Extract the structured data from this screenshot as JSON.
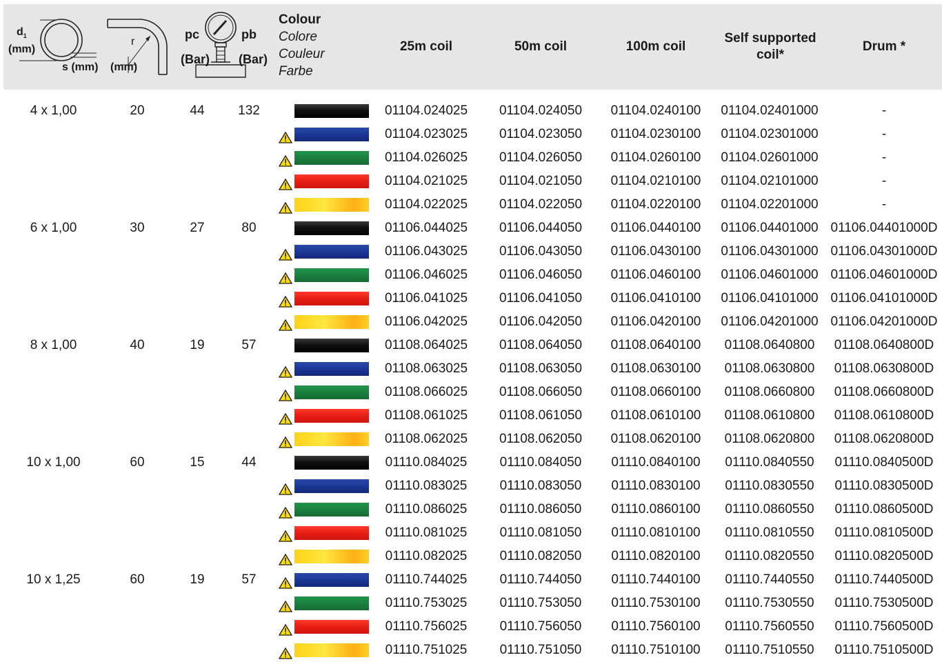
{
  "header": {
    "d1_label": "d",
    "d1_sub": "1",
    "d1_unit": "(mm)",
    "s_label": "s (mm)",
    "r_label": "r",
    "r_unit": "(mm)",
    "pc_label": "pc",
    "pc_unit": "(Bar)",
    "pb_label": "pb",
    "pb_unit": "(Bar)",
    "colour_en": "Colour",
    "colour_it": "Colore",
    "colour_fr": "Couleur",
    "colour_de": "Farbe",
    "col_25": "25m coil",
    "col_50": "50m coil",
    "col_100": "100m coil",
    "col_self": "Self supported coil*",
    "col_drum": "Drum *"
  },
  "colors": {
    "header_bg": "#e6e6e6",
    "black": "#111111",
    "blue": "#1b3794",
    "green": "#1b8040",
    "red": "#e81c14",
    "yellow": "#ffe640",
    "warning": "#ffdd00"
  },
  "icons": {
    "tube_section": "tube-cross-section-icon",
    "bend_radius": "bend-radius-icon",
    "pressure_gauge": "pressure-gauge-icon",
    "warning": "warning-triangle-icon"
  },
  "rows": [
    {
      "size": "4 x 1,00",
      "r": "20",
      "pc": "44",
      "pb": "132",
      "colour": "black",
      "warn": false,
      "c25": "01104.024025",
      "c50": "01104.024050",
      "c100": "01104.0240100",
      "self": "01104.02401000",
      "drum": "-"
    },
    {
      "size": "",
      "r": "",
      "pc": "",
      "pb": "",
      "colour": "blue",
      "warn": true,
      "c25": "01104.023025",
      "c50": "01104.023050",
      "c100": "01104.0230100",
      "self": "01104.02301000",
      "drum": "-"
    },
    {
      "size": "",
      "r": "",
      "pc": "",
      "pb": "",
      "colour": "green",
      "warn": true,
      "c25": "01104.026025",
      "c50": "01104.026050",
      "c100": "01104.0260100",
      "self": "01104.02601000",
      "drum": "-"
    },
    {
      "size": "",
      "r": "",
      "pc": "",
      "pb": "",
      "colour": "red",
      "warn": true,
      "c25": "01104.021025",
      "c50": "01104.021050",
      "c100": "01104.0210100",
      "self": "01104.02101000",
      "drum": "-"
    },
    {
      "size": "",
      "r": "",
      "pc": "",
      "pb": "",
      "colour": "yellow",
      "warn": true,
      "c25": "01104.022025",
      "c50": "01104.022050",
      "c100": "01104.0220100",
      "self": "01104.02201000",
      "drum": "-"
    },
    {
      "size": "6 x 1,00",
      "r": "30",
      "pc": "27",
      "pb": "80",
      "colour": "black",
      "warn": false,
      "c25": "01106.044025",
      "c50": "01106.044050",
      "c100": "01106.0440100",
      "self": "01106.04401000",
      "drum": "01106.04401000D"
    },
    {
      "size": "",
      "r": "",
      "pc": "",
      "pb": "",
      "colour": "blue",
      "warn": true,
      "c25": "01106.043025",
      "c50": "01106.043050",
      "c100": "01106.0430100",
      "self": "01106.04301000",
      "drum": "01106.04301000D"
    },
    {
      "size": "",
      "r": "",
      "pc": "",
      "pb": "",
      "colour": "green",
      "warn": true,
      "c25": "01106.046025",
      "c50": "01106.046050",
      "c100": "01106.0460100",
      "self": "01106.04601000",
      "drum": "01106.04601000D"
    },
    {
      "size": "",
      "r": "",
      "pc": "",
      "pb": "",
      "colour": "red",
      "warn": true,
      "c25": "01106.041025",
      "c50": "01106.041050",
      "c100": "01106.0410100",
      "self": "01106.04101000",
      "drum": "01106.04101000D"
    },
    {
      "size": "",
      "r": "",
      "pc": "",
      "pb": "",
      "colour": "yellow",
      "warn": true,
      "c25": "01106.042025",
      "c50": "01106.042050",
      "c100": "01106.0420100",
      "self": "01106.04201000",
      "drum": "01106.04201000D"
    },
    {
      "size": "8 x 1,00",
      "r": "40",
      "pc": "19",
      "pb": "57",
      "colour": "black",
      "warn": false,
      "c25": "01108.064025",
      "c50": "01108.064050",
      "c100": "01108.0640100",
      "self": "01108.0640800",
      "drum": "01108.0640800D"
    },
    {
      "size": "",
      "r": "",
      "pc": "",
      "pb": "",
      "colour": "blue",
      "warn": true,
      "c25": "01108.063025",
      "c50": "01108.063050",
      "c100": "01108.0630100",
      "self": "01108.0630800",
      "drum": "01108.0630800D"
    },
    {
      "size": "",
      "r": "",
      "pc": "",
      "pb": "",
      "colour": "green",
      "warn": true,
      "c25": "01108.066025",
      "c50": "01108.066050",
      "c100": "01108.0660100",
      "self": "01108.0660800",
      "drum": "01108.0660800D"
    },
    {
      "size": "",
      "r": "",
      "pc": "",
      "pb": "",
      "colour": "red",
      "warn": true,
      "c25": "01108.061025",
      "c50": "01108.061050",
      "c100": "01108.0610100",
      "self": "01108.0610800",
      "drum": "01108.0610800D"
    },
    {
      "size": "",
      "r": "",
      "pc": "",
      "pb": "",
      "colour": "yellow",
      "warn": true,
      "c25": "01108.062025",
      "c50": "01108.062050",
      "c100": "01108.0620100",
      "self": "01108.0620800",
      "drum": "01108.0620800D"
    },
    {
      "size": "10 x 1,00",
      "r": "60",
      "pc": "15",
      "pb": "44",
      "colour": "black",
      "warn": false,
      "c25": "01110.084025",
      "c50": "01110.084050",
      "c100": "01110.0840100",
      "self": "01110.0840550",
      "drum": "01110.0840500D"
    },
    {
      "size": "",
      "r": "",
      "pc": "",
      "pb": "",
      "colour": "blue",
      "warn": true,
      "c25": "01110.083025",
      "c50": "01110.083050",
      "c100": "01110.0830100",
      "self": "01110.0830550",
      "drum": "01110.0830500D"
    },
    {
      "size": "",
      "r": "",
      "pc": "",
      "pb": "",
      "colour": "green",
      "warn": true,
      "c25": "01110.086025",
      "c50": "01110.086050",
      "c100": "01110.0860100",
      "self": "01110.0860550",
      "drum": "01110.0860500D"
    },
    {
      "size": "",
      "r": "",
      "pc": "",
      "pb": "",
      "colour": "red",
      "warn": true,
      "c25": "01110.081025",
      "c50": "01110.081050",
      "c100": "01110.0810100",
      "self": "01110.0810550",
      "drum": "01110.0810500D"
    },
    {
      "size": "",
      "r": "",
      "pc": "",
      "pb": "",
      "colour": "yellow",
      "warn": true,
      "c25": "01110.082025",
      "c50": "01110.082050",
      "c100": "01110.0820100",
      "self": "01110.0820550",
      "drum": "01110.0820500D"
    },
    {
      "size": "10 x 1,25",
      "r": "60",
      "pc": "19",
      "pb": "57",
      "colour": "blue",
      "warn": true,
      "c25": "01110.744025",
      "c50": "01110.744050",
      "c100": "01110.7440100",
      "self": "01110.7440550",
      "drum": "01110.7440500D"
    },
    {
      "size": "",
      "r": "",
      "pc": "",
      "pb": "",
      "colour": "green",
      "warn": true,
      "c25": "01110.753025",
      "c50": "01110.753050",
      "c100": "01110.7530100",
      "self": "01110.7530550",
      "drum": "01110.7530500D"
    },
    {
      "size": "",
      "r": "",
      "pc": "",
      "pb": "",
      "colour": "red",
      "warn": true,
      "c25": "01110.756025",
      "c50": "01110.756050",
      "c100": "01110.7560100",
      "self": "01110.7560550",
      "drum": "01110.7560500D"
    },
    {
      "size": "",
      "r": "",
      "pc": "",
      "pb": "",
      "colour": "yellow",
      "warn": true,
      "c25": "01110.751025",
      "c50": "01110.751050",
      "c100": "01110.7510100",
      "self": "01110.7510550",
      "drum": "01110.7510500D"
    }
  ]
}
